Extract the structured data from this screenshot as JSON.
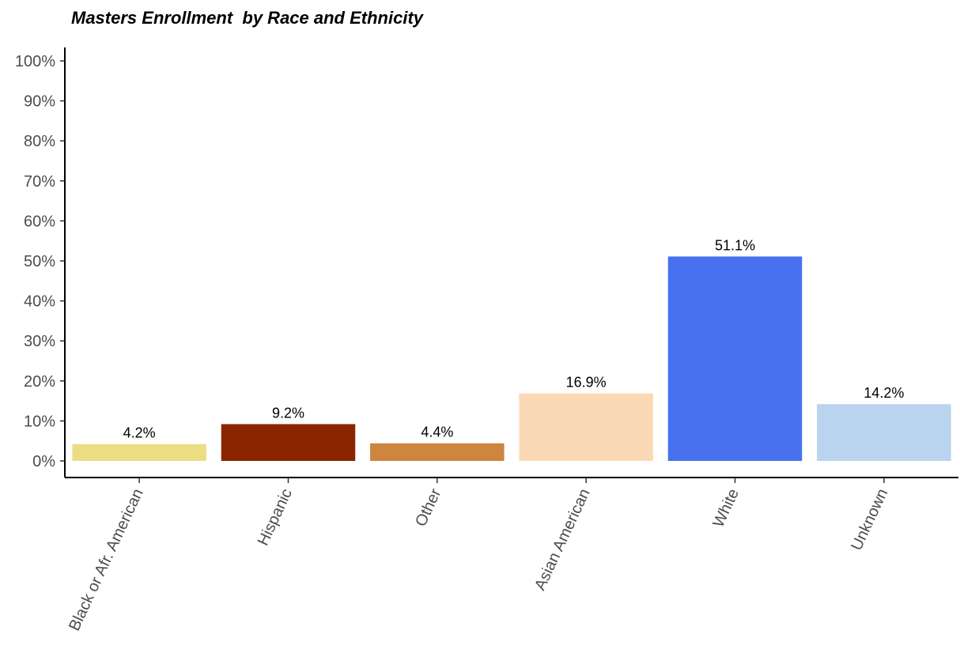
{
  "chart_data": {
    "type": "bar",
    "title": "Masters Enrollment  by Race and Ethnicity",
    "xlabel": "",
    "ylabel": "",
    "categories": [
      "Black or Afr. American",
      "Hispanic",
      "Other",
      "Asian American",
      "White",
      "Unknown"
    ],
    "values": [
      4.2,
      9.2,
      4.4,
      16.9,
      51.1,
      14.2
    ],
    "data_labels": [
      "4.2%",
      "9.2%",
      "4.4%",
      "16.9%",
      "51.1%",
      "14.2%"
    ],
    "colors": [
      "#ECDC84",
      "#8B2500",
      "#CD853F",
      "#FCD9B6",
      "#4771EE",
      "#BAD3EE"
    ],
    "ylim": [
      0,
      100
    ],
    "yticks": [
      0,
      10,
      20,
      30,
      40,
      50,
      60,
      70,
      80,
      90,
      100
    ],
    "ytick_labels": [
      "0%",
      "10%",
      "20%",
      "30%",
      "40%",
      "50%",
      "60%",
      "70%",
      "80%",
      "90%",
      "100%"
    ],
    "grid": false,
    "legend": "none"
  }
}
